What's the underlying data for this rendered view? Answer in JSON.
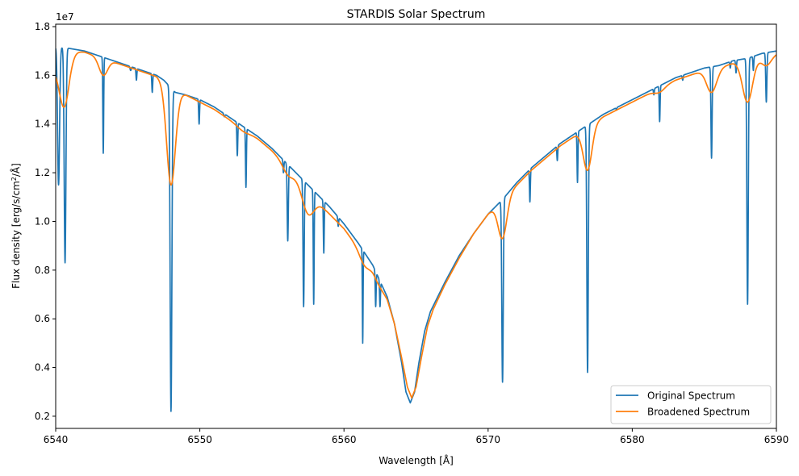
{
  "chart_data": {
    "type": "line",
    "title": "STARDIS Solar Spectrum",
    "xlabel": "Wavelength [Å]",
    "ylabel_parts": {
      "main": "Flux density [erg/s/cm",
      "sup": "2",
      "tail": "/Å]"
    },
    "y_offset_text": "1e7",
    "xlim": [
      6540,
      6590
    ],
    "ylim": [
      0.15,
      1.81
    ],
    "y_unit_multiplier": 10000000,
    "x_ticks": [
      6540,
      6550,
      6560,
      6570,
      6580,
      6590
    ],
    "x_tick_labels": [
      "6540",
      "6550",
      "6560",
      "6570",
      "6580",
      "6590"
    ],
    "y_ticks": [
      0.2,
      0.4,
      0.6,
      0.8,
      1.0,
      1.2,
      1.4,
      1.6,
      1.8
    ],
    "y_tick_labels": [
      "0.2",
      "0.4",
      "0.6",
      "0.8",
      "1.0",
      "1.2",
      "1.4",
      "1.6",
      "1.8"
    ],
    "grid": false,
    "legend_position": "lower-right",
    "series": [
      {
        "name": "Original Spectrum",
        "color": "#1f77b4",
        "continuum": [
          [
            6540,
            1.72
          ],
          [
            6541,
            1.71
          ],
          [
            6542,
            1.7
          ],
          [
            6543,
            1.68
          ],
          [
            6544,
            1.66
          ],
          [
            6545,
            1.64
          ],
          [
            6546,
            1.62
          ],
          [
            6547,
            1.6
          ],
          [
            6547.5,
            1.58
          ],
          [
            6548.3,
            1.53
          ],
          [
            6549,
            1.52
          ],
          [
            6550,
            1.5
          ],
          [
            6551,
            1.47
          ],
          [
            6552,
            1.43
          ],
          [
            6553,
            1.39
          ],
          [
            6554,
            1.35
          ],
          [
            6555,
            1.3
          ],
          [
            6556,
            1.24
          ],
          [
            6557,
            1.18
          ],
          [
            6558,
            1.12
          ],
          [
            6559,
            1.06
          ],
          [
            6560,
            0.99
          ],
          [
            6561,
            0.91
          ],
          [
            6562,
            0.82
          ],
          [
            6563,
            0.69
          ],
          [
            6563.5,
            0.58
          ],
          [
            6564,
            0.42
          ],
          [
            6564.3,
            0.3
          ],
          [
            6564.6,
            0.255
          ],
          [
            6564.9,
            0.3
          ],
          [
            6565.2,
            0.42
          ],
          [
            6565.6,
            0.55
          ],
          [
            6566,
            0.63
          ],
          [
            6567,
            0.75
          ],
          [
            6568,
            0.86
          ],
          [
            6569,
            0.95
          ],
          [
            6570,
            1.03
          ],
          [
            6571,
            1.09
          ],
          [
            6572,
            1.16
          ],
          [
            6573,
            1.22
          ],
          [
            6574,
            1.27
          ],
          [
            6575,
            1.32
          ],
          [
            6576,
            1.36
          ],
          [
            6577,
            1.4
          ],
          [
            6578,
            1.44
          ],
          [
            6579,
            1.47
          ],
          [
            6580,
            1.5
          ],
          [
            6581,
            1.53
          ],
          [
            6582,
            1.56
          ],
          [
            6583,
            1.59
          ],
          [
            6584,
            1.61
          ],
          [
            6585,
            1.63
          ],
          [
            6586,
            1.64
          ],
          [
            6587,
            1.66
          ],
          [
            6588,
            1.67
          ],
          [
            6589,
            1.69
          ],
          [
            6590,
            1.7
          ]
        ],
        "lines": [
          [
            6540.2,
            1.15,
            0.07
          ],
          [
            6540.65,
            0.83,
            0.06
          ],
          [
            6543.3,
            1.28,
            0.03
          ],
          [
            6545.2,
            1.62,
            0.04
          ],
          [
            6545.6,
            1.58,
            0.03
          ],
          [
            6546.7,
            1.53,
            0.03
          ],
          [
            6548.0,
            0.22,
            0.06
          ],
          [
            6549.95,
            1.4,
            0.03
          ],
          [
            6551.7,
            1.43,
            0.04
          ],
          [
            6552.6,
            1.27,
            0.03
          ],
          [
            6553.2,
            1.14,
            0.03
          ],
          [
            6555.8,
            1.2,
            0.03
          ],
          [
            6556.1,
            0.92,
            0.04
          ],
          [
            6557.2,
            0.65,
            0.04
          ],
          [
            6557.9,
            0.66,
            0.03
          ],
          [
            6558.6,
            0.87,
            0.03
          ],
          [
            6559.6,
            0.98,
            0.03
          ],
          [
            6561.3,
            0.5,
            0.025
          ],
          [
            6562.2,
            0.65,
            0.03
          ],
          [
            6562.5,
            0.65,
            0.03
          ],
          [
            6567.2,
            0.78,
            0.03
          ],
          [
            6571.0,
            0.34,
            0.05
          ],
          [
            6572.9,
            1.08,
            0.03
          ],
          [
            6574.8,
            1.25,
            0.03
          ],
          [
            6576.2,
            1.16,
            0.03
          ],
          [
            6576.9,
            0.38,
            0.05
          ],
          [
            6578.9,
            1.46,
            0.03
          ],
          [
            6581.5,
            1.52,
            0.03
          ],
          [
            6581.9,
            1.41,
            0.03
          ],
          [
            6583.5,
            1.58,
            0.03
          ],
          [
            6585.5,
            1.26,
            0.04
          ],
          [
            6586.8,
            1.63,
            0.03
          ],
          [
            6587.2,
            1.61,
            0.03
          ],
          [
            6588.0,
            0.66,
            0.05
          ],
          [
            6588.4,
            1.62,
            0.03
          ],
          [
            6589.3,
            1.49,
            0.04
          ]
        ]
      },
      {
        "name": "Broadened Spectrum",
        "color": "#ff7f0e",
        "continuum": [
          [
            6540,
            1.64
          ],
          [
            6541,
            1.7
          ],
          [
            6542,
            1.695
          ],
          [
            6543,
            1.675
          ],
          [
            6544,
            1.655
          ],
          [
            6545,
            1.635
          ],
          [
            6546,
            1.615
          ],
          [
            6547,
            1.595
          ],
          [
            6547.5,
            1.57
          ],
          [
            6548.5,
            1.53
          ],
          [
            6549,
            1.52
          ],
          [
            6550,
            1.49
          ],
          [
            6551,
            1.46
          ],
          [
            6552,
            1.42
          ],
          [
            6553,
            1.38
          ],
          [
            6554,
            1.34
          ],
          [
            6555,
            1.29
          ],
          [
            6556,
            1.23
          ],
          [
            6557,
            1.16
          ],
          [
            6558,
            1.09
          ],
          [
            6559,
            1.03
          ],
          [
            6560,
            0.97
          ],
          [
            6561,
            0.89
          ],
          [
            6562,
            0.8
          ],
          [
            6563,
            0.68
          ],
          [
            6563.5,
            0.58
          ],
          [
            6564,
            0.44
          ],
          [
            6564.4,
            0.32
          ],
          [
            6564.7,
            0.275
          ],
          [
            6565.0,
            0.32
          ],
          [
            6565.4,
            0.45
          ],
          [
            6565.8,
            0.57
          ],
          [
            6566.2,
            0.64
          ],
          [
            6567,
            0.74
          ],
          [
            6568,
            0.85
          ],
          [
            6569,
            0.95
          ],
          [
            6570,
            1.03
          ],
          [
            6571,
            1.09
          ],
          [
            6572,
            1.15
          ],
          [
            6573,
            1.21
          ],
          [
            6574,
            1.26
          ],
          [
            6575,
            1.31
          ],
          [
            6576,
            1.35
          ],
          [
            6577,
            1.39
          ],
          [
            6578,
            1.43
          ],
          [
            6579,
            1.46
          ],
          [
            6580,
            1.49
          ],
          [
            6581,
            1.52
          ],
          [
            6582,
            1.55
          ],
          [
            6583,
            1.58
          ],
          [
            6584,
            1.6
          ],
          [
            6585,
            1.62
          ],
          [
            6586,
            1.63
          ],
          [
            6587,
            1.65
          ],
          [
            6588,
            1.66
          ],
          [
            6589,
            1.68
          ],
          [
            6590,
            1.69
          ]
        ],
        "lines": [
          [
            6540.6,
            1.47,
            0.35
          ],
          [
            6543.3,
            1.6,
            0.3
          ],
          [
            6548.0,
            1.15,
            0.3
          ],
          [
            6553.0,
            1.37,
            0.4
          ],
          [
            6556.1,
            1.19,
            0.35
          ],
          [
            6557.5,
            1.03,
            0.4
          ],
          [
            6558.6,
            1.07,
            0.35
          ],
          [
            6561.4,
            0.82,
            0.35
          ],
          [
            6562.4,
            0.74,
            0.3
          ],
          [
            6571.0,
            0.93,
            0.3
          ],
          [
            6576.9,
            1.21,
            0.3
          ],
          [
            6581.9,
            1.53,
            0.35
          ],
          [
            6585.5,
            1.53,
            0.35
          ],
          [
            6588.0,
            1.49,
            0.35
          ],
          [
            6589.3,
            1.64,
            0.35
          ]
        ]
      }
    ]
  }
}
